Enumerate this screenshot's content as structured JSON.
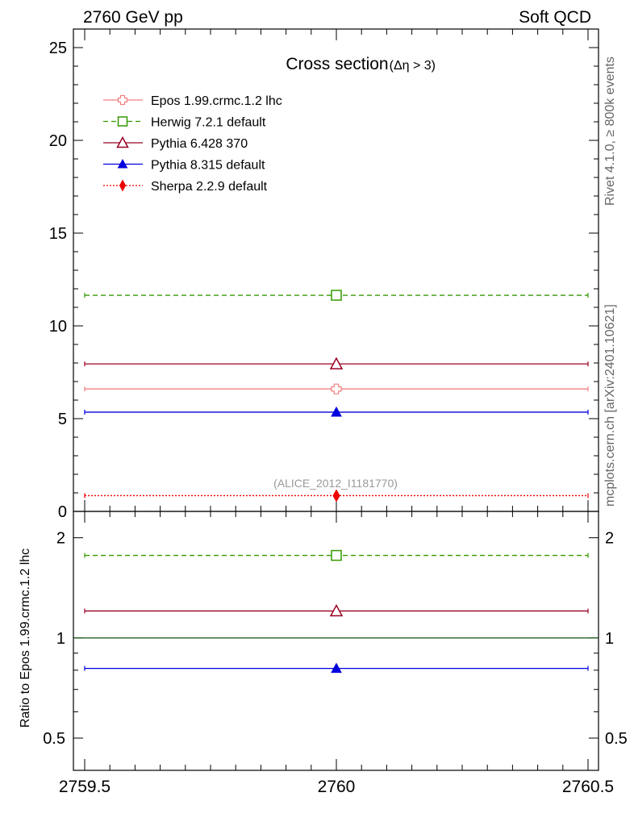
{
  "header": {
    "left": "2760 GeV pp",
    "right": "Soft QCD"
  },
  "side_labels": {
    "rivet": "Rivet 4.1.0, ≥ 800k events",
    "mcplots": "mcplots.cern.ch [arXiv:2401.10621]"
  },
  "chart_data": [
    {
      "type": "line",
      "title": "Cross section",
      "title_suffix": "(Δη > 3)",
      "watermark": "(ALICE_2012_I1181770)",
      "xlim": [
        2759.5,
        2760.5
      ],
      "ylim": [
        0,
        26
      ],
      "yticks": [
        0,
        5,
        10,
        15,
        20,
        25
      ],
      "x": 2760,
      "series": [
        {
          "name": "Epos 1.99.crmc.1.2 lhc",
          "value": 6.6,
          "color": "#f08080",
          "style": "solid",
          "marker": "open-cross"
        },
        {
          "name": "Herwig 7.2.1 default",
          "value": 11.65,
          "color": "#339900",
          "style": "dashed",
          "marker": "open-square"
        },
        {
          "name": "Pythia 6.428 370",
          "value": 7.95,
          "color": "#990022",
          "style": "solid",
          "marker": "open-triangle"
        },
        {
          "name": "Pythia 8.315 default",
          "value": 5.35,
          "color": "#0000dd",
          "style": "solid",
          "marker": "filled-triangle"
        },
        {
          "name": "Sherpa 2.2.9 default",
          "value": 0.85,
          "color": "#ee0000",
          "style": "dotted",
          "marker": "filled-diamond"
        }
      ]
    },
    {
      "type": "line",
      "ylabel": "Ratio to Epos 1.99.crmc.1.2 lhc",
      "xlim": [
        2759.5,
        2760.5
      ],
      "ylim": [
        0.4,
        2.4
      ],
      "yscale": "log",
      "yticks": [
        0.5,
        1,
        2
      ],
      "ytick_labels": [
        "0.5",
        "1",
        "2"
      ],
      "xticks": [
        2759.5,
        2760,
        2760.5
      ],
      "xtick_labels": [
        "2759.5",
        "2760",
        "2760.5"
      ],
      "x": 2760,
      "series": [
        {
          "name": "Epos 1.99.crmc.1.2 lhc",
          "value": 1.0,
          "color": "#115511",
          "style": "solid",
          "marker": "none"
        },
        {
          "name": "Herwig 7.2.1 default",
          "value": 1.77,
          "color": "#339900",
          "style": "dashed",
          "marker": "open-square"
        },
        {
          "name": "Pythia 6.428 370",
          "value": 1.205,
          "color": "#990022",
          "style": "solid",
          "marker": "open-triangle"
        },
        {
          "name": "Pythia 8.315 default",
          "value": 0.81,
          "color": "#0000dd",
          "style": "solid",
          "marker": "filled-triangle"
        }
      ]
    }
  ]
}
